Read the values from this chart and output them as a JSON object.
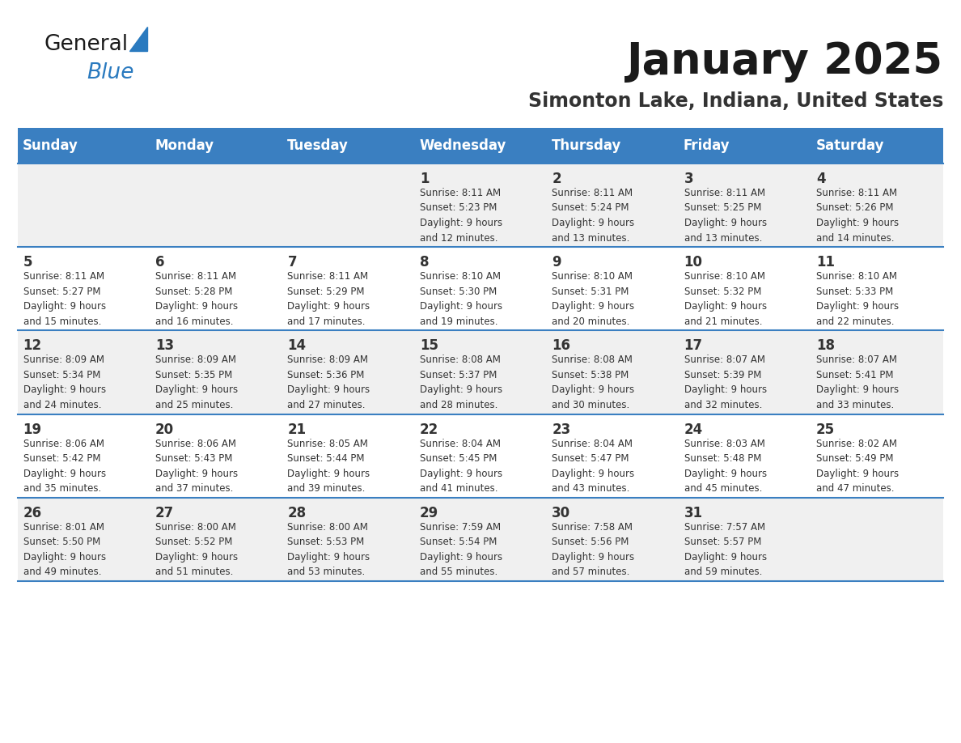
{
  "title": "January 2025",
  "subtitle": "Simonton Lake, Indiana, United States",
  "days_of_week": [
    "Sunday",
    "Monday",
    "Tuesday",
    "Wednesday",
    "Thursday",
    "Friday",
    "Saturday"
  ],
  "header_bg": "#3a7fc1",
  "header_text": "#ffffff",
  "row_bg_odd": "#f0f0f0",
  "row_bg_even": "#ffffff",
  "cell_text": "#333333",
  "separator_color": "#3a7fc1",
  "title_color": "#1a1a1a",
  "subtitle_color": "#333333",
  "logo_general_color": "#1a1a1a",
  "logo_blue_color": "#2a7abf",
  "logo_triangle_color": "#2a7abf",
  "weeks": [
    [
      {
        "day": null,
        "info": null
      },
      {
        "day": null,
        "info": null
      },
      {
        "day": null,
        "info": null
      },
      {
        "day": 1,
        "info": "Sunrise: 8:11 AM\nSunset: 5:23 PM\nDaylight: 9 hours\nand 12 minutes."
      },
      {
        "day": 2,
        "info": "Sunrise: 8:11 AM\nSunset: 5:24 PM\nDaylight: 9 hours\nand 13 minutes."
      },
      {
        "day": 3,
        "info": "Sunrise: 8:11 AM\nSunset: 5:25 PM\nDaylight: 9 hours\nand 13 minutes."
      },
      {
        "day": 4,
        "info": "Sunrise: 8:11 AM\nSunset: 5:26 PM\nDaylight: 9 hours\nand 14 minutes."
      }
    ],
    [
      {
        "day": 5,
        "info": "Sunrise: 8:11 AM\nSunset: 5:27 PM\nDaylight: 9 hours\nand 15 minutes."
      },
      {
        "day": 6,
        "info": "Sunrise: 8:11 AM\nSunset: 5:28 PM\nDaylight: 9 hours\nand 16 minutes."
      },
      {
        "day": 7,
        "info": "Sunrise: 8:11 AM\nSunset: 5:29 PM\nDaylight: 9 hours\nand 17 minutes."
      },
      {
        "day": 8,
        "info": "Sunrise: 8:10 AM\nSunset: 5:30 PM\nDaylight: 9 hours\nand 19 minutes."
      },
      {
        "day": 9,
        "info": "Sunrise: 8:10 AM\nSunset: 5:31 PM\nDaylight: 9 hours\nand 20 minutes."
      },
      {
        "day": 10,
        "info": "Sunrise: 8:10 AM\nSunset: 5:32 PM\nDaylight: 9 hours\nand 21 minutes."
      },
      {
        "day": 11,
        "info": "Sunrise: 8:10 AM\nSunset: 5:33 PM\nDaylight: 9 hours\nand 22 minutes."
      }
    ],
    [
      {
        "day": 12,
        "info": "Sunrise: 8:09 AM\nSunset: 5:34 PM\nDaylight: 9 hours\nand 24 minutes."
      },
      {
        "day": 13,
        "info": "Sunrise: 8:09 AM\nSunset: 5:35 PM\nDaylight: 9 hours\nand 25 minutes."
      },
      {
        "day": 14,
        "info": "Sunrise: 8:09 AM\nSunset: 5:36 PM\nDaylight: 9 hours\nand 27 minutes."
      },
      {
        "day": 15,
        "info": "Sunrise: 8:08 AM\nSunset: 5:37 PM\nDaylight: 9 hours\nand 28 minutes."
      },
      {
        "day": 16,
        "info": "Sunrise: 8:08 AM\nSunset: 5:38 PM\nDaylight: 9 hours\nand 30 minutes."
      },
      {
        "day": 17,
        "info": "Sunrise: 8:07 AM\nSunset: 5:39 PM\nDaylight: 9 hours\nand 32 minutes."
      },
      {
        "day": 18,
        "info": "Sunrise: 8:07 AM\nSunset: 5:41 PM\nDaylight: 9 hours\nand 33 minutes."
      }
    ],
    [
      {
        "day": 19,
        "info": "Sunrise: 8:06 AM\nSunset: 5:42 PM\nDaylight: 9 hours\nand 35 minutes."
      },
      {
        "day": 20,
        "info": "Sunrise: 8:06 AM\nSunset: 5:43 PM\nDaylight: 9 hours\nand 37 minutes."
      },
      {
        "day": 21,
        "info": "Sunrise: 8:05 AM\nSunset: 5:44 PM\nDaylight: 9 hours\nand 39 minutes."
      },
      {
        "day": 22,
        "info": "Sunrise: 8:04 AM\nSunset: 5:45 PM\nDaylight: 9 hours\nand 41 minutes."
      },
      {
        "day": 23,
        "info": "Sunrise: 8:04 AM\nSunset: 5:47 PM\nDaylight: 9 hours\nand 43 minutes."
      },
      {
        "day": 24,
        "info": "Sunrise: 8:03 AM\nSunset: 5:48 PM\nDaylight: 9 hours\nand 45 minutes."
      },
      {
        "day": 25,
        "info": "Sunrise: 8:02 AM\nSunset: 5:49 PM\nDaylight: 9 hours\nand 47 minutes."
      }
    ],
    [
      {
        "day": 26,
        "info": "Sunrise: 8:01 AM\nSunset: 5:50 PM\nDaylight: 9 hours\nand 49 minutes."
      },
      {
        "day": 27,
        "info": "Sunrise: 8:00 AM\nSunset: 5:52 PM\nDaylight: 9 hours\nand 51 minutes."
      },
      {
        "day": 28,
        "info": "Sunrise: 8:00 AM\nSunset: 5:53 PM\nDaylight: 9 hours\nand 53 minutes."
      },
      {
        "day": 29,
        "info": "Sunrise: 7:59 AM\nSunset: 5:54 PM\nDaylight: 9 hours\nand 55 minutes."
      },
      {
        "day": 30,
        "info": "Sunrise: 7:58 AM\nSunset: 5:56 PM\nDaylight: 9 hours\nand 57 minutes."
      },
      {
        "day": 31,
        "info": "Sunrise: 7:57 AM\nSunset: 5:57 PM\nDaylight: 9 hours\nand 59 minutes."
      },
      {
        "day": null,
        "info": null
      }
    ]
  ]
}
